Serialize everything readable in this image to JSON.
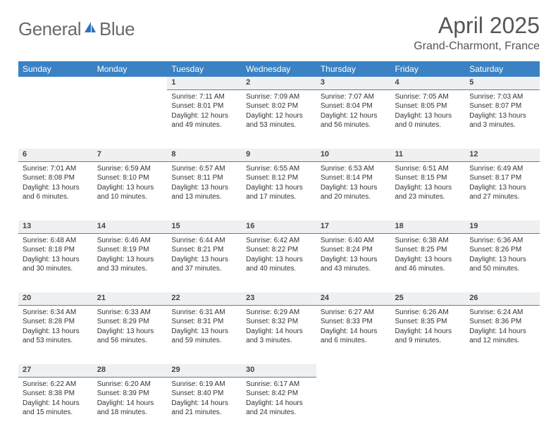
{
  "brand": {
    "text1": "General",
    "text2": "Blue",
    "text_color": "#6a6a6a",
    "icon_color": "#2e74b5"
  },
  "title": "April 2025",
  "location": "Grand-Charmont, France",
  "colors": {
    "header_bg": "#3b82c4",
    "header_text": "#ffffff",
    "daynum_bg": "#eef0f2",
    "daynum_border": "#6b7a8f",
    "body_text": "#333333",
    "page_bg": "#ffffff"
  },
  "day_headers": [
    "Sunday",
    "Monday",
    "Tuesday",
    "Wednesday",
    "Thursday",
    "Friday",
    "Saturday"
  ],
  "weeks": [
    {
      "nums": [
        "",
        "",
        "1",
        "2",
        "3",
        "4",
        "5"
      ],
      "cells": [
        null,
        null,
        {
          "sunrise": "Sunrise: 7:11 AM",
          "sunset": "Sunset: 8:01 PM",
          "daylight": "Daylight: 12 hours and 49 minutes."
        },
        {
          "sunrise": "Sunrise: 7:09 AM",
          "sunset": "Sunset: 8:02 PM",
          "daylight": "Daylight: 12 hours and 53 minutes."
        },
        {
          "sunrise": "Sunrise: 7:07 AM",
          "sunset": "Sunset: 8:04 PM",
          "daylight": "Daylight: 12 hours and 56 minutes."
        },
        {
          "sunrise": "Sunrise: 7:05 AM",
          "sunset": "Sunset: 8:05 PM",
          "daylight": "Daylight: 13 hours and 0 minutes."
        },
        {
          "sunrise": "Sunrise: 7:03 AM",
          "sunset": "Sunset: 8:07 PM",
          "daylight": "Daylight: 13 hours and 3 minutes."
        }
      ]
    },
    {
      "nums": [
        "6",
        "7",
        "8",
        "9",
        "10",
        "11",
        "12"
      ],
      "cells": [
        {
          "sunrise": "Sunrise: 7:01 AM",
          "sunset": "Sunset: 8:08 PM",
          "daylight": "Daylight: 13 hours and 6 minutes."
        },
        {
          "sunrise": "Sunrise: 6:59 AM",
          "sunset": "Sunset: 8:10 PM",
          "daylight": "Daylight: 13 hours and 10 minutes."
        },
        {
          "sunrise": "Sunrise: 6:57 AM",
          "sunset": "Sunset: 8:11 PM",
          "daylight": "Daylight: 13 hours and 13 minutes."
        },
        {
          "sunrise": "Sunrise: 6:55 AM",
          "sunset": "Sunset: 8:12 PM",
          "daylight": "Daylight: 13 hours and 17 minutes."
        },
        {
          "sunrise": "Sunrise: 6:53 AM",
          "sunset": "Sunset: 8:14 PM",
          "daylight": "Daylight: 13 hours and 20 minutes."
        },
        {
          "sunrise": "Sunrise: 6:51 AM",
          "sunset": "Sunset: 8:15 PM",
          "daylight": "Daylight: 13 hours and 23 minutes."
        },
        {
          "sunrise": "Sunrise: 6:49 AM",
          "sunset": "Sunset: 8:17 PM",
          "daylight": "Daylight: 13 hours and 27 minutes."
        }
      ]
    },
    {
      "nums": [
        "13",
        "14",
        "15",
        "16",
        "17",
        "18",
        "19"
      ],
      "cells": [
        {
          "sunrise": "Sunrise: 6:48 AM",
          "sunset": "Sunset: 8:18 PM",
          "daylight": "Daylight: 13 hours and 30 minutes."
        },
        {
          "sunrise": "Sunrise: 6:46 AM",
          "sunset": "Sunset: 8:19 PM",
          "daylight": "Daylight: 13 hours and 33 minutes."
        },
        {
          "sunrise": "Sunrise: 6:44 AM",
          "sunset": "Sunset: 8:21 PM",
          "daylight": "Daylight: 13 hours and 37 minutes."
        },
        {
          "sunrise": "Sunrise: 6:42 AM",
          "sunset": "Sunset: 8:22 PM",
          "daylight": "Daylight: 13 hours and 40 minutes."
        },
        {
          "sunrise": "Sunrise: 6:40 AM",
          "sunset": "Sunset: 8:24 PM",
          "daylight": "Daylight: 13 hours and 43 minutes."
        },
        {
          "sunrise": "Sunrise: 6:38 AM",
          "sunset": "Sunset: 8:25 PM",
          "daylight": "Daylight: 13 hours and 46 minutes."
        },
        {
          "sunrise": "Sunrise: 6:36 AM",
          "sunset": "Sunset: 8:26 PM",
          "daylight": "Daylight: 13 hours and 50 minutes."
        }
      ]
    },
    {
      "nums": [
        "20",
        "21",
        "22",
        "23",
        "24",
        "25",
        "26"
      ],
      "cells": [
        {
          "sunrise": "Sunrise: 6:34 AM",
          "sunset": "Sunset: 8:28 PM",
          "daylight": "Daylight: 13 hours and 53 minutes."
        },
        {
          "sunrise": "Sunrise: 6:33 AM",
          "sunset": "Sunset: 8:29 PM",
          "daylight": "Daylight: 13 hours and 56 minutes."
        },
        {
          "sunrise": "Sunrise: 6:31 AM",
          "sunset": "Sunset: 8:31 PM",
          "daylight": "Daylight: 13 hours and 59 minutes."
        },
        {
          "sunrise": "Sunrise: 6:29 AM",
          "sunset": "Sunset: 8:32 PM",
          "daylight": "Daylight: 14 hours and 3 minutes."
        },
        {
          "sunrise": "Sunrise: 6:27 AM",
          "sunset": "Sunset: 8:33 PM",
          "daylight": "Daylight: 14 hours and 6 minutes."
        },
        {
          "sunrise": "Sunrise: 6:26 AM",
          "sunset": "Sunset: 8:35 PM",
          "daylight": "Daylight: 14 hours and 9 minutes."
        },
        {
          "sunrise": "Sunrise: 6:24 AM",
          "sunset": "Sunset: 8:36 PM",
          "daylight": "Daylight: 14 hours and 12 minutes."
        }
      ]
    },
    {
      "nums": [
        "27",
        "28",
        "29",
        "30",
        "",
        "",
        ""
      ],
      "cells": [
        {
          "sunrise": "Sunrise: 6:22 AM",
          "sunset": "Sunset: 8:38 PM",
          "daylight": "Daylight: 14 hours and 15 minutes."
        },
        {
          "sunrise": "Sunrise: 6:20 AM",
          "sunset": "Sunset: 8:39 PM",
          "daylight": "Daylight: 14 hours and 18 minutes."
        },
        {
          "sunrise": "Sunrise: 6:19 AM",
          "sunset": "Sunset: 8:40 PM",
          "daylight": "Daylight: 14 hours and 21 minutes."
        },
        {
          "sunrise": "Sunrise: 6:17 AM",
          "sunset": "Sunset: 8:42 PM",
          "daylight": "Daylight: 14 hours and 24 minutes."
        },
        null,
        null,
        null
      ]
    }
  ]
}
